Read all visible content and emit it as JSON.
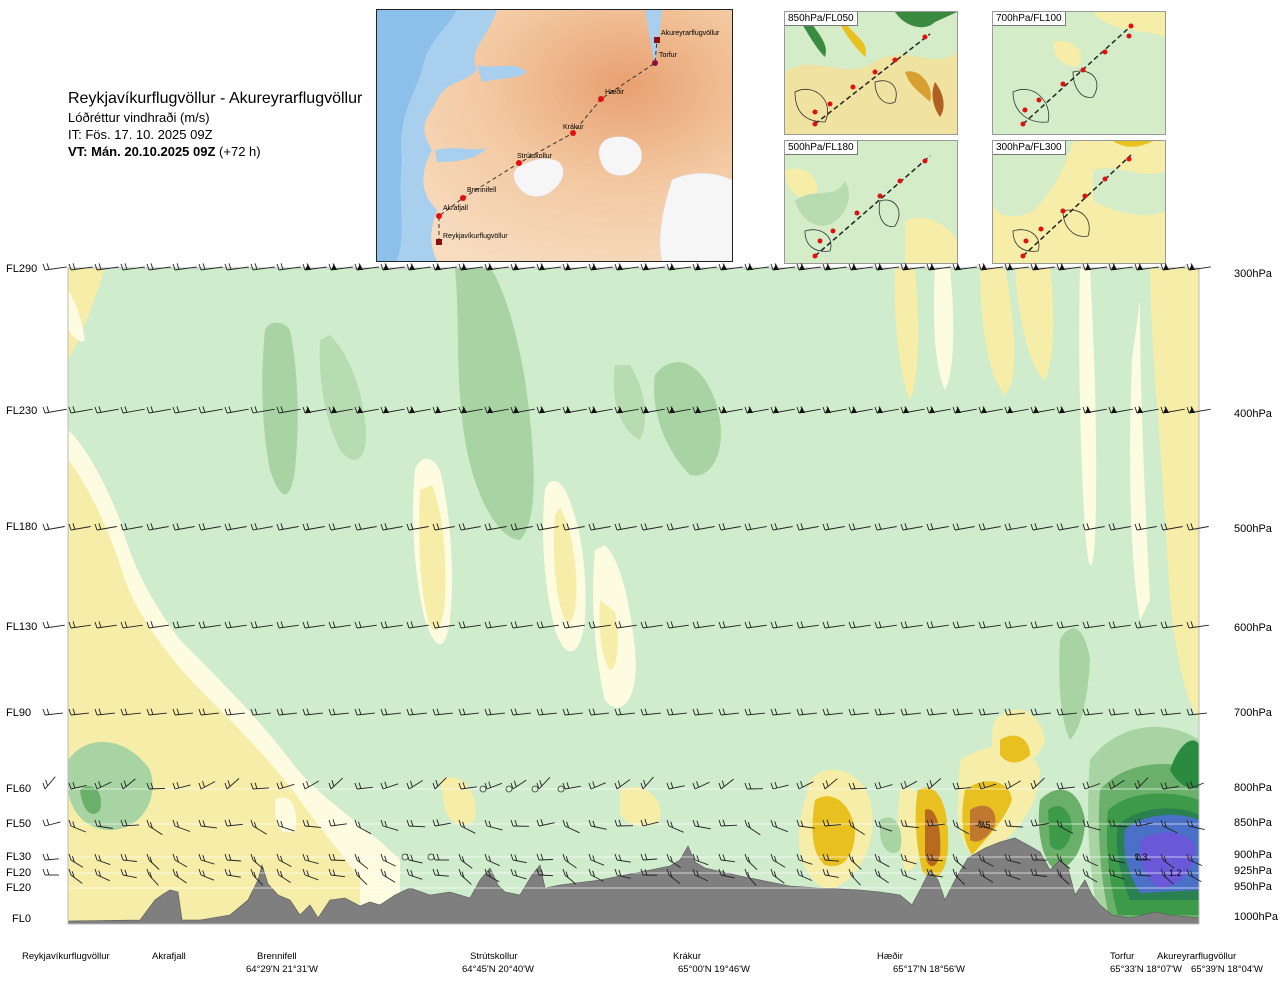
{
  "header": {
    "title": "Reykjavíkurflugvöllur - Akureyrarflugvöllur",
    "subtitle": "Lóðréttur vindhraði (m/s)",
    "issue_time": "IT: Fös. 17. 10. 2025 09Z",
    "valid_time": "VT: Mán. 20.10.2025 09Z",
    "lead_time": "(+72 h)"
  },
  "route_map": {
    "waypoints": [
      "Akureyrarflugvöllur",
      "Torfur",
      "Hæðir",
      "Krákur",
      "Strútskollur",
      "Brennifell",
      "Akrafjall",
      "Reykjavíkurflugvöllur"
    ]
  },
  "mini_maps": [
    {
      "label": "850hPa/FL050"
    },
    {
      "label": "700hPa/FL100"
    },
    {
      "label": "500hPa/FL180"
    },
    {
      "label": "300hPa/FL300"
    }
  ],
  "levels": [
    {
      "fl": "FL290",
      "hpa": "300hPa"
    },
    {
      "fl": "FL230",
      "hpa": "400hPa"
    },
    {
      "fl": "FL180",
      "hpa": "500hPa"
    },
    {
      "fl": "FL130",
      "hpa": "600hPa"
    },
    {
      "fl": "FL90",
      "hpa": "700hPa"
    },
    {
      "fl": "FL60",
      "hpa": "800hPa"
    },
    {
      "fl": "FL50",
      "hpa": "850hPa"
    },
    {
      "fl": "FL30",
      "hpa": "900hPa"
    },
    {
      "fl": "FL20",
      "hpa": "925hPa"
    },
    {
      "fl": "FL20",
      "hpa": "950hPa"
    },
    {
      "fl": "FL0",
      "hpa": "1000hPa"
    }
  ],
  "contour_labels": [
    "-0.5",
    "1.3",
    "1.2"
  ],
  "bottom_axis": [
    {
      "name": "Reykjavíkurflugvöllur",
      "coord": ""
    },
    {
      "name": "Akrafjall",
      "coord": ""
    },
    {
      "name": "Brennifell",
      "coord": "64°29'N 21°31'W"
    },
    {
      "name": "Strútskollur",
      "coord": "64°45'N 20°40'W"
    },
    {
      "name": "Krákur",
      "coord": "65°00'N 19°46'W"
    },
    {
      "name": "Hæðir",
      "coord": "65°17'N 18°56'W"
    },
    {
      "name": "Torfur",
      "coord": "65°33'N 18°07'W"
    },
    {
      "name": "Akureyrarflugvöllur",
      "coord": "65°39'N 18°04'W"
    }
  ],
  "colors": {
    "updraft_strong": "#4a4ad0",
    "updraft_medium": "#3c9a48",
    "updraft_weak": "#a8d8a0",
    "background_green": "#cfeccd",
    "neutral": "#fdfbe0",
    "downdraft_weak": "#f5eda8",
    "downdraft_medium": "#e8c020",
    "downdraft_strong": "#b86a20",
    "terrain": "#808080",
    "route_point": "#e01010"
  }
}
